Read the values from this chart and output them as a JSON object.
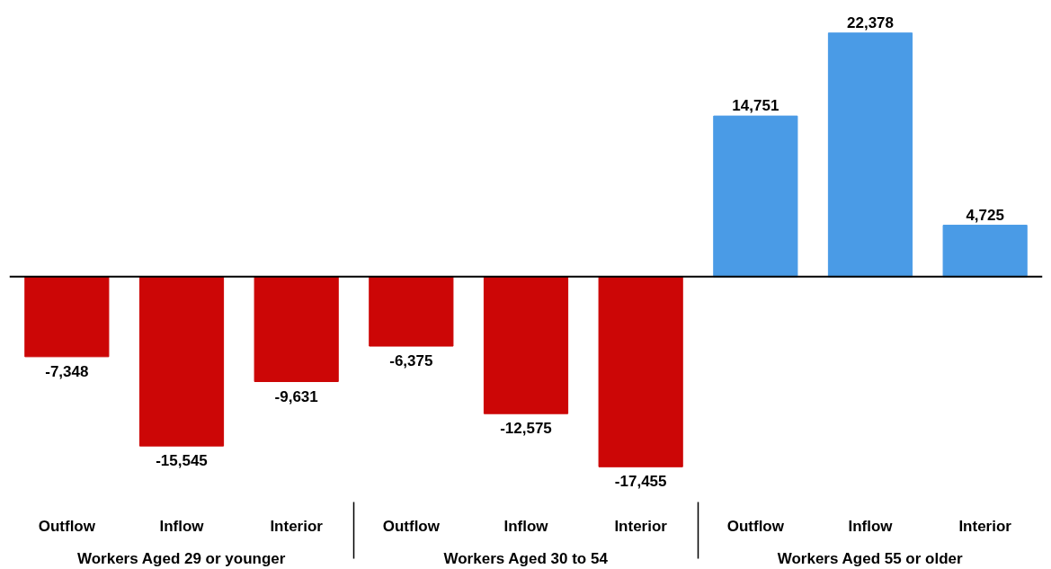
{
  "chart_data": {
    "type": "bar",
    "categories": [
      "Outflow",
      "Inflow",
      "Interior",
      "Outflow",
      "Inflow",
      "Interior",
      "Outflow",
      "Inflow",
      "Interior"
    ],
    "values": [
      -7348,
      -15545,
      -9631,
      -6375,
      -12575,
      -17455,
      14751,
      22378,
      4725
    ],
    "value_labels": [
      "-7,348",
      "-15,545",
      "-9,631",
      "-6,375",
      "-12,575",
      "-17,455",
      "14,751",
      "22,378",
      "4,725"
    ],
    "colors": [
      "#cc0606",
      "#cc0606",
      "#cc0606",
      "#cc0606",
      "#cc0606",
      "#cc0606",
      "#4a9be6",
      "#4a9be6",
      "#4a9be6"
    ],
    "annotations": [
      "Workers Aged 29 or younger",
      "Workers Aged 30 to 54",
      "Workers Aged 55 or older"
    ]
  }
}
